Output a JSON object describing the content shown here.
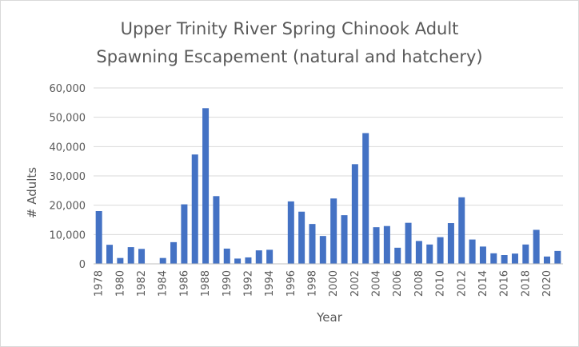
{
  "chart_data": {
    "type": "bar",
    "title_lines": [
      "Upper Trinity River Spring Chinook Adult",
      "Spawning Escapement (natural and hatchery)"
    ],
    "xlabel": "Year",
    "ylabel": "# Adults",
    "ylim": [
      0,
      60000
    ],
    "yticks": [
      0,
      10000,
      20000,
      30000,
      40000,
      50000,
      60000
    ],
    "ytick_labels": [
      "0",
      "10,000",
      "20,000",
      "30,000",
      "40,000",
      "50,000",
      "60,000"
    ],
    "grid": true,
    "legend": "none",
    "bar_color": "#4472c4",
    "categories": [
      "1978",
      "1979",
      "1980",
      "1981",
      "1982",
      "1983",
      "1984",
      "1985",
      "1986",
      "1987",
      "1988",
      "1989",
      "1990",
      "1991",
      "1992",
      "1993",
      "1994",
      "1995",
      "1996",
      "1997",
      "1998",
      "1999",
      "2000",
      "2001",
      "2002",
      "2003",
      "2004",
      "2005",
      "2006",
      "2007",
      "2008",
      "2009",
      "2010",
      "2011",
      "2012",
      "2013",
      "2014",
      "2015",
      "2016",
      "2017",
      "2018",
      "2019",
      "2020",
      "2021"
    ],
    "xtick_labels": [
      "1978",
      "",
      "1980",
      "",
      "1982",
      "",
      "1984",
      "",
      "1986",
      "",
      "1988",
      "",
      "1990",
      "",
      "1992",
      "",
      "1994",
      "",
      "1996",
      "",
      "1998",
      "",
      "2000",
      "",
      "2002",
      "",
      "2004",
      "",
      "2006",
      "",
      "2008",
      "",
      "2010",
      "",
      "2012",
      "",
      "2014",
      "",
      "2016",
      "",
      "2018",
      "",
      "2020",
      ""
    ],
    "values": [
      18000,
      6500,
      2000,
      5700,
      5100,
      null,
      2000,
      7400,
      20300,
      37300,
      53100,
      23100,
      5200,
      1800,
      2200,
      4600,
      4800,
      null,
      21300,
      17800,
      13600,
      9500,
      22300,
      16600,
      34000,
      44600,
      12500,
      12900,
      5500,
      14000,
      7800,
      6600,
      9100,
      13900,
      22700,
      8300,
      5900,
      3600,
      3000,
      3500,
      6600,
      11600,
      2500,
      4400
    ]
  }
}
